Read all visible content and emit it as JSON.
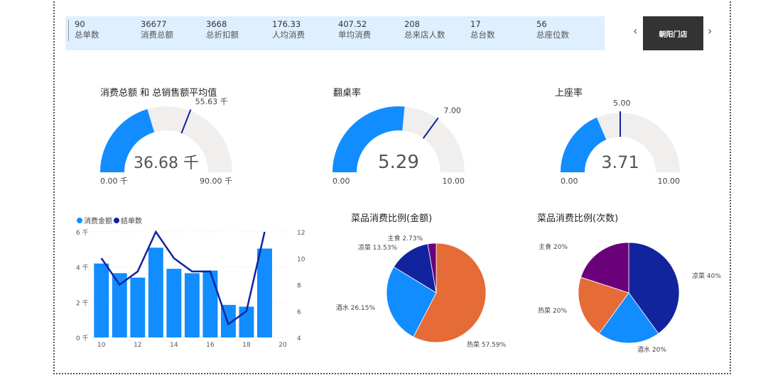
{
  "kpis": [
    {
      "value": "90",
      "label": "总单数"
    },
    {
      "value": "36677",
      "label": "消费总额"
    },
    {
      "value": "3668",
      "label": "总折扣额"
    },
    {
      "value": "176.33",
      "label": "人均消费"
    },
    {
      "value": "407.52",
      "label": "单均消费"
    },
    {
      "value": "208",
      "label": "总来店人数"
    },
    {
      "value": "17",
      "label": "总台数"
    },
    {
      "value": "56",
      "label": "总座位数"
    }
  ],
  "store": {
    "label": "朝阳门店",
    "prev": "‹",
    "next": "›"
  },
  "gauges": [
    {
      "title": "消费总额 和 总销售额平均值",
      "value": 36.68,
      "min": 0,
      "max": 90,
      "target": 55.63,
      "value_label": "36.68 千",
      "min_label": "0.00 千",
      "max_label": "90.00 千",
      "target_label": "55.63 千"
    },
    {
      "title": "翻桌率",
      "value": 5.29,
      "min": 0,
      "max": 10,
      "target": 7,
      "value_label": "5.29",
      "min_label": "0.00",
      "max_label": "10.00",
      "target_label": "7.00"
    },
    {
      "title": "上座率",
      "value": 3.71,
      "min": 0,
      "max": 10,
      "target": 5,
      "value_label": "3.71",
      "min_label": "0.00",
      "max_label": "10.00",
      "target_label": "5.00"
    }
  ],
  "colors": {
    "light_blue": "#118dff",
    "navy": "#12239e",
    "orange": "#e66c37",
    "purple": "#6b007b",
    "track": "#f0efed"
  },
  "chart_data": [
    {
      "type": "bar+line",
      "legend": [
        "消费金额",
        "结单数"
      ],
      "x": [
        10,
        11,
        12,
        13,
        14,
        15,
        16,
        17,
        18,
        19
      ],
      "series": [
        {
          "name": "消费金额",
          "type": "bar",
          "values": [
            4200,
            3650,
            3400,
            5100,
            3900,
            3650,
            3800,
            1850,
            1750,
            5050
          ]
        },
        {
          "name": "结单数",
          "type": "line",
          "values": [
            10,
            8,
            9,
            12,
            10,
            9,
            9,
            5,
            6,
            12
          ]
        }
      ],
      "xticks": [
        "10",
        "12",
        "14",
        "16",
        "18",
        "20"
      ],
      "yticks_left": [
        "0 千",
        "2 千",
        "4 千",
        "6 千"
      ],
      "yticks_right": [
        "4",
        "6",
        "8",
        "10",
        "12"
      ],
      "ylim_left": [
        0,
        6000
      ],
      "ylim_right": [
        4,
        12
      ],
      "xlim": [
        9.5,
        20
      ],
      "legend_position": "top-left",
      "grid": true
    },
    {
      "type": "pie",
      "title": "菜品消费比例(金额)",
      "slices": [
        {
          "label": "热菜",
          "value": 57.59,
          "text": "热菜 57.59%",
          "color": "#e66c37"
        },
        {
          "label": "酒水",
          "value": 26.15,
          "text": "酒水 26.15%",
          "color": "#118dff"
        },
        {
          "label": "凉菜",
          "value": 13.53,
          "text": "凉菜 13.53%",
          "color": "#12239e"
        },
        {
          "label": "主食",
          "value": 2.73,
          "text": "主食 2.73%",
          "color": "#6b007b"
        }
      ]
    },
    {
      "type": "pie",
      "title": "菜品消费比例(次数)",
      "slices": [
        {
          "label": "凉菜",
          "value": 40,
          "text": "凉菜 40%",
          "color": "#12239e"
        },
        {
          "label": "酒水",
          "value": 20,
          "text": "酒水 20%",
          "color": "#118dff"
        },
        {
          "label": "热菜",
          "value": 20,
          "text": "热菜 20%",
          "color": "#e66c37"
        },
        {
          "label": "主食",
          "value": 20,
          "text": "主食 20%",
          "color": "#6b007b"
        }
      ]
    }
  ]
}
